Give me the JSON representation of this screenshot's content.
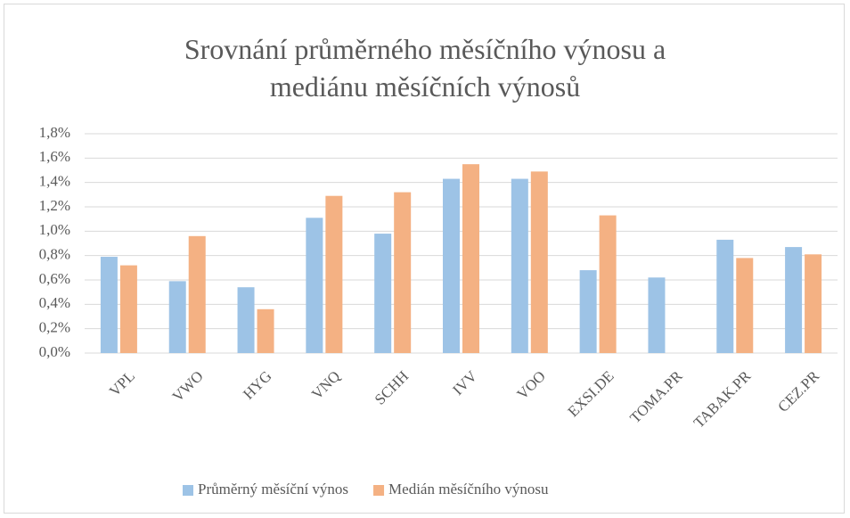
{
  "chart_data": {
    "type": "bar",
    "title": "Srovnání průměrného měsíčního výnosu a mediánu měsíčních výnosů",
    "categories": [
      "VPL",
      "VWO",
      "HYG",
      "VNQ",
      "SCHH",
      "IVV",
      "VOO",
      "EXSI.DE",
      "TOMA.PR",
      "TABAK.PR",
      "CEZ.PR"
    ],
    "series": [
      {
        "name": "Průměrný měsíční výnos",
        "color": "#9dc3e6",
        "values": [
          0.79,
          0.59,
          0.54,
          1.11,
          0.98,
          1.43,
          1.43,
          0.68,
          0.62,
          0.93,
          0.87
        ]
      },
      {
        "name": "Medián měsíčního výnosu",
        "color": "#f4b183",
        "values": [
          0.72,
          0.96,
          0.36,
          1.29,
          1.32,
          1.55,
          1.49,
          1.13,
          null,
          0.78,
          0.81
        ]
      }
    ],
    "ylim": [
      0,
      1.8
    ],
    "yticks": [
      {
        "value": 0,
        "label": "0,0%"
      },
      {
        "value": 0.2,
        "label": "0,2%"
      },
      {
        "value": 0.4,
        "label": "0,4%"
      },
      {
        "value": 0.6,
        "label": "0,6%"
      },
      {
        "value": 0.8,
        "label": "0,8%"
      },
      {
        "value": 1.0,
        "label": "1,0%"
      },
      {
        "value": 1.2,
        "label": "1,2%"
      },
      {
        "value": 1.4,
        "label": "1,4%"
      },
      {
        "value": 1.6,
        "label": "1,6%"
      },
      {
        "value": 1.8,
        "label": "1,8%"
      }
    ],
    "grid": true,
    "legend": "bottom"
  }
}
